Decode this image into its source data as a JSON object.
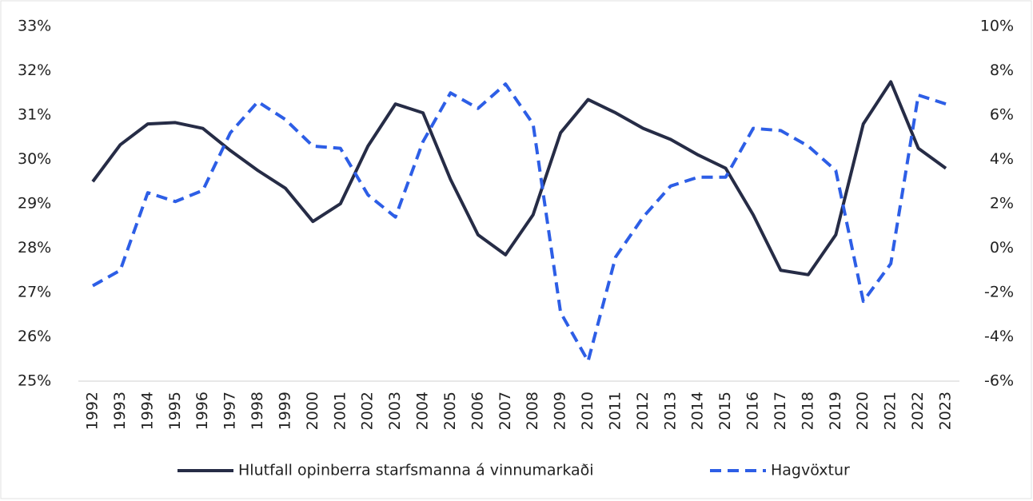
{
  "chart_data": {
    "type": "line",
    "categories": [
      "1992",
      "1993",
      "1994",
      "1995",
      "1996",
      "1997",
      "1998",
      "1999",
      "2000",
      "2001",
      "2002",
      "2003",
      "2004",
      "2005",
      "2006",
      "2007",
      "2008",
      "2009",
      "2010",
      "2011",
      "2012",
      "2013",
      "2014",
      "2015",
      "2016",
      "2017",
      "2018",
      "2019",
      "2020",
      "2021",
      "2022",
      "2023"
    ],
    "series": [
      {
        "name": "Hlutfall opinberra starfsmanna á vinnumarkaði",
        "color": "#262c46",
        "style": "solid",
        "axis": "y",
        "values": [
          29.5,
          30.33,
          30.8,
          30.83,
          30.7,
          30.2,
          29.75,
          29.35,
          28.6,
          29.0,
          30.3,
          31.25,
          31.05,
          29.55,
          28.3,
          27.85,
          28.75,
          30.6,
          31.35,
          31.05,
          30.7,
          30.45,
          30.1,
          29.8,
          28.75,
          27.5,
          27.4,
          28.3,
          30.8,
          31.75,
          30.25,
          29.8
        ]
      },
      {
        "name": "Hagvöxtur",
        "color": "#2d5ee6",
        "style": "dashed",
        "axis": "y2",
        "values": [
          -1.7,
          -1.0,
          2.5,
          2.1,
          2.6,
          5.2,
          6.6,
          5.8,
          4.6,
          4.5,
          2.4,
          1.4,
          4.8,
          7.0,
          6.3,
          7.4,
          5.6,
          -2.9,
          -5.1,
          -0.4,
          1.4,
          2.8,
          3.2,
          3.2,
          5.4,
          5.3,
          4.6,
          3.5,
          -2.4,
          -0.7,
          6.9,
          6.5
        ]
      }
    ],
    "ylim": [
      25,
      33
    ],
    "yticks": [
      {
        "value": 25,
        "label": "25%"
      },
      {
        "value": 26,
        "label": "26%"
      },
      {
        "value": 27,
        "label": "27%"
      },
      {
        "value": 28,
        "label": "28%"
      },
      {
        "value": 29,
        "label": "29%"
      },
      {
        "value": 30,
        "label": "30%"
      },
      {
        "value": 31,
        "label": "31%"
      },
      {
        "value": 32,
        "label": "32%"
      },
      {
        "value": 33,
        "label": "33%"
      }
    ],
    "y2lim": [
      -6,
      10
    ],
    "y2ticks": [
      {
        "value": -6,
        "label": "-6%"
      },
      {
        "value": -4,
        "label": "-4%"
      },
      {
        "value": -2,
        "label": "-2%"
      },
      {
        "value": 0,
        "label": "0%"
      },
      {
        "value": 2,
        "label": "2%"
      },
      {
        "value": 4,
        "label": "4%"
      },
      {
        "value": 6,
        "label": "6%"
      },
      {
        "value": 8,
        "label": "8%"
      },
      {
        "value": 10,
        "label": "10%"
      }
    ],
    "legend": "bottom"
  }
}
